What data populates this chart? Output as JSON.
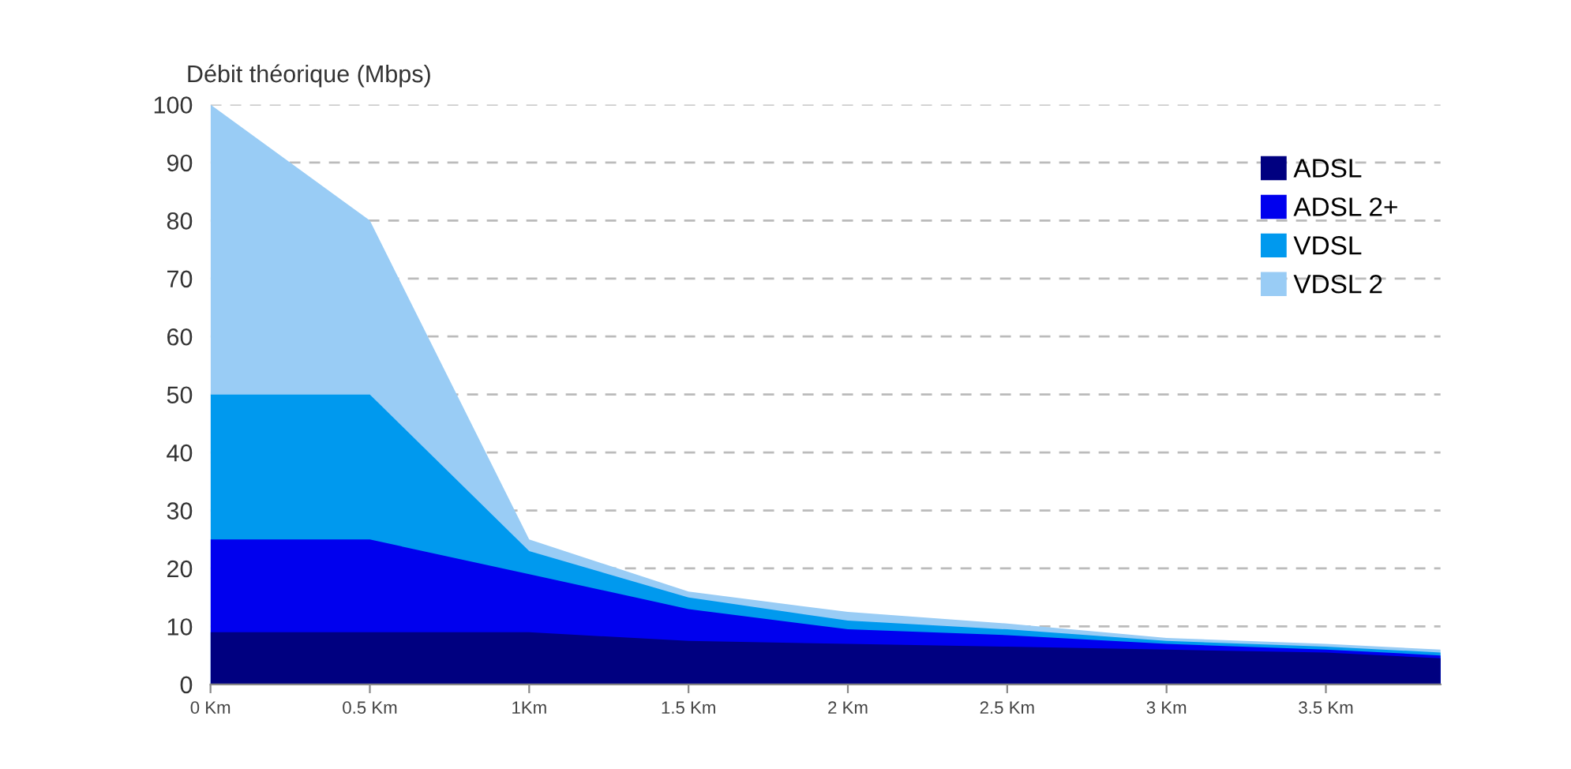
{
  "chart_data": {
    "type": "area",
    "ylabel": "Débit théorique (Mbps)",
    "x": [
      0,
      0.5,
      1,
      1.5,
      2,
      2.5,
      3,
      3.5,
      3.86
    ],
    "series": [
      {
        "name": "ADSL",
        "color": "#000080",
        "values": [
          9,
          9,
          9,
          7.5,
          7,
          6.5,
          6,
          5.5,
          4.5
        ]
      },
      {
        "name": "ADSL 2+",
        "color": "#0000ee",
        "values": [
          25,
          25,
          19,
          13,
          9.5,
          8.5,
          7,
          6,
          5
        ]
      },
      {
        "name": "VDSL",
        "color": "#0099ee",
        "values": [
          50,
          50,
          23,
          15,
          11,
          9.5,
          7.5,
          6.5,
          5.5
        ]
      },
      {
        "name": "VDSL 2",
        "color": "#99ccf5",
        "values": [
          100,
          80,
          25,
          16,
          12.5,
          10.5,
          8,
          7,
          6
        ]
      }
    ],
    "xlim": [
      0,
      3.86
    ],
    "xticks": [
      {
        "value": 0,
        "label": "0 Km"
      },
      {
        "value": 0.5,
        "label": "0.5 Km"
      },
      {
        "value": 1,
        "label": "1Km"
      },
      {
        "value": 1.5,
        "label": "1.5 Km"
      },
      {
        "value": 2,
        "label": "2 Km"
      },
      {
        "value": 2.5,
        "label": "2.5 Km"
      },
      {
        "value": 3,
        "label": "3 Km"
      },
      {
        "value": 3.5,
        "label": "3.5 Km"
      }
    ],
    "ylim": [
      0,
      100
    ],
    "yticks": [
      0,
      10,
      20,
      30,
      40,
      50,
      60,
      70,
      80,
      90,
      100
    ],
    "grid": "y",
    "legend": "top right"
  }
}
